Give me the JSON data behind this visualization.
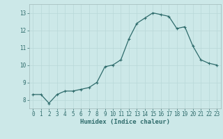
{
  "x": [
    0,
    1,
    2,
    3,
    4,
    5,
    6,
    7,
    8,
    9,
    10,
    11,
    12,
    13,
    14,
    15,
    16,
    17,
    18,
    19,
    20,
    21,
    22,
    23
  ],
  "y": [
    8.3,
    8.3,
    7.8,
    8.3,
    8.5,
    8.5,
    8.6,
    8.7,
    9.0,
    9.9,
    10.0,
    10.3,
    11.5,
    12.4,
    12.7,
    13.0,
    12.9,
    12.8,
    12.1,
    12.2,
    11.1,
    10.3,
    10.1,
    10.0
  ],
  "line_color": "#2e6b6b",
  "marker": "+",
  "marker_size": 3,
  "bg_color": "#cce8e8",
  "grid_color": "#c0d8d8",
  "axes_color": "#2e6b6b",
  "xlabel": "Humidex (Indice chaleur)",
  "xlim": [
    -0.5,
    23.5
  ],
  "ylim": [
    7.5,
    13.5
  ],
  "yticks": [
    8,
    9,
    10,
    11,
    12,
    13
  ],
  "xticks": [
    0,
    1,
    2,
    3,
    4,
    5,
    6,
    7,
    8,
    9,
    10,
    11,
    12,
    13,
    14,
    15,
    16,
    17,
    18,
    19,
    20,
    21,
    22,
    23
  ],
  "tick_label_fontsize": 5.5,
  "xlabel_fontsize": 6.5,
  "tick_color": "#2e6b6b",
  "line_width": 0.9
}
